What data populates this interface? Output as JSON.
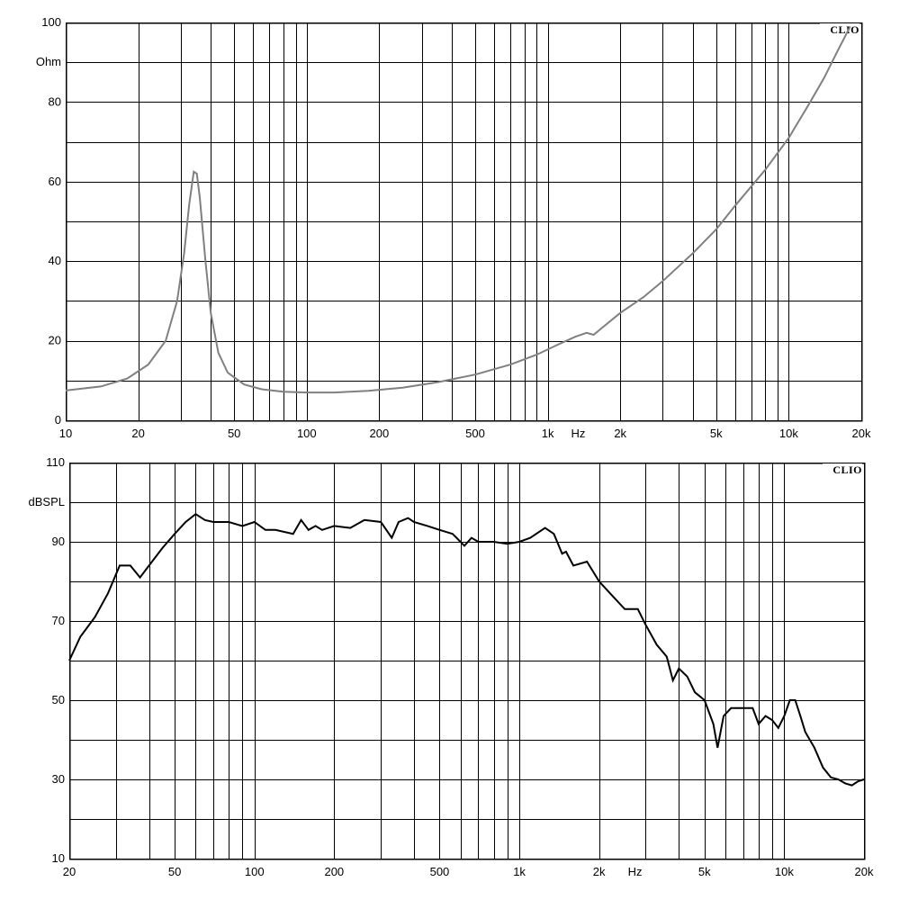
{
  "chart_data": [
    {
      "type": "line",
      "brand": "CLIO",
      "ylabel": "Ohm",
      "xlabel": "Hz",
      "xscale": "log",
      "xlim": [
        10,
        20000
      ],
      "ylim": [
        0,
        100
      ],
      "x_ticks": [
        10,
        20,
        50,
        100,
        200,
        500,
        1000,
        2000,
        5000,
        10000,
        20000
      ],
      "x_tick_labels": [
        "10",
        "20",
        "50",
        "100",
        "200",
        "500",
        "1k",
        "2k",
        "5k",
        "10k",
        "20k"
      ],
      "y_ticks": [
        0,
        20,
        40,
        60,
        80,
        100
      ],
      "y_tick_labels": [
        "0",
        "20",
        "40",
        "60",
        "80",
        "100"
      ],
      "grid": true,
      "series": [
        {
          "color": "#808080",
          "x": [
            10,
            14,
            18,
            22,
            26,
            29,
            31,
            32.5,
            34,
            35,
            36,
            38,
            40,
            43,
            47,
            55,
            65,
            80,
            100,
            130,
            180,
            250,
            350,
            500,
            700,
            900,
            1100,
            1300,
            1450,
            1550,
            1700,
            2000,
            2500,
            3000,
            4000,
            5000,
            6000,
            8000,
            10000,
            12000,
            14000,
            16000,
            18000
          ],
          "values": [
            7.5,
            8.5,
            10.5,
            14,
            20,
            30,
            42,
            54,
            62.5,
            62,
            56,
            40,
            27,
            17,
            12,
            9,
            7.8,
            7.2,
            7,
            7,
            7.4,
            8.2,
            9.6,
            11.5,
            14,
            16.5,
            19,
            21,
            22,
            21.5,
            23.5,
            27,
            31,
            35,
            42,
            48,
            54,
            63,
            71,
            79,
            86,
            93,
            99
          ]
        }
      ]
    },
    {
      "type": "line",
      "brand": "CLIO",
      "ylabel": "dBSPL",
      "xlabel": "Hz",
      "xscale": "log",
      "xlim": [
        20,
        20000
      ],
      "ylim": [
        10,
        110
      ],
      "x_ticks": [
        20,
        50,
        100,
        200,
        500,
        1000,
        2000,
        5000,
        10000,
        20000
      ],
      "x_tick_labels": [
        "20",
        "50",
        "100",
        "200",
        "500",
        "1k",
        "2k",
        "5k",
        "10k",
        "20k"
      ],
      "y_ticks": [
        10,
        30,
        50,
        70,
        90,
        110
      ],
      "y_tick_labels": [
        "10",
        "30",
        "50",
        "70",
        "90",
        "110"
      ],
      "grid": true,
      "series": [
        {
          "color": "#000000",
          "x": [
            20,
            22,
            25,
            28,
            31,
            34,
            37,
            40,
            45,
            50,
            55,
            60,
            65,
            70,
            80,
            90,
            100,
            110,
            120,
            140,
            150,
            160,
            170,
            180,
            200,
            230,
            260,
            300,
            330,
            350,
            380,
            400,
            450,
            500,
            560,
            620,
            660,
            700,
            800,
            900,
            1000,
            1100,
            1250,
            1350,
            1450,
            1500,
            1600,
            1800,
            2000,
            2200,
            2500,
            2800,
            3000,
            3300,
            3600,
            3800,
            4000,
            4300,
            4600,
            5000,
            5400,
            5600,
            5900,
            6300,
            7000,
            7600,
            8000,
            8500,
            9000,
            9500,
            10000,
            10500,
            11000,
            11500,
            12000,
            13000,
            14000,
            15000,
            16000,
            17000,
            18000,
            19000,
            20000
          ],
          "values": [
            60,
            66,
            71,
            77,
            84,
            84,
            81,
            84,
            88.5,
            92,
            95,
            97,
            95.5,
            95,
            95,
            94,
            95,
            93,
            93,
            92,
            95.5,
            93,
            94,
            93,
            94,
            93.5,
            95.5,
            95,
            91,
            95,
            96,
            95,
            94,
            93,
            92,
            89,
            91,
            90,
            90,
            89.5,
            90,
            91,
            93.5,
            92,
            87,
            87.5,
            84,
            85,
            80,
            77,
            73,
            73,
            69,
            64,
            61,
            55,
            58,
            56,
            52,
            50,
            44,
            38,
            46,
            48,
            48,
            48,
            44,
            46,
            45,
            43,
            46,
            50,
            50,
            46,
            42,
            38,
            33,
            30.5,
            30,
            29,
            28.5,
            29.5,
            30
          ]
        }
      ]
    }
  ]
}
